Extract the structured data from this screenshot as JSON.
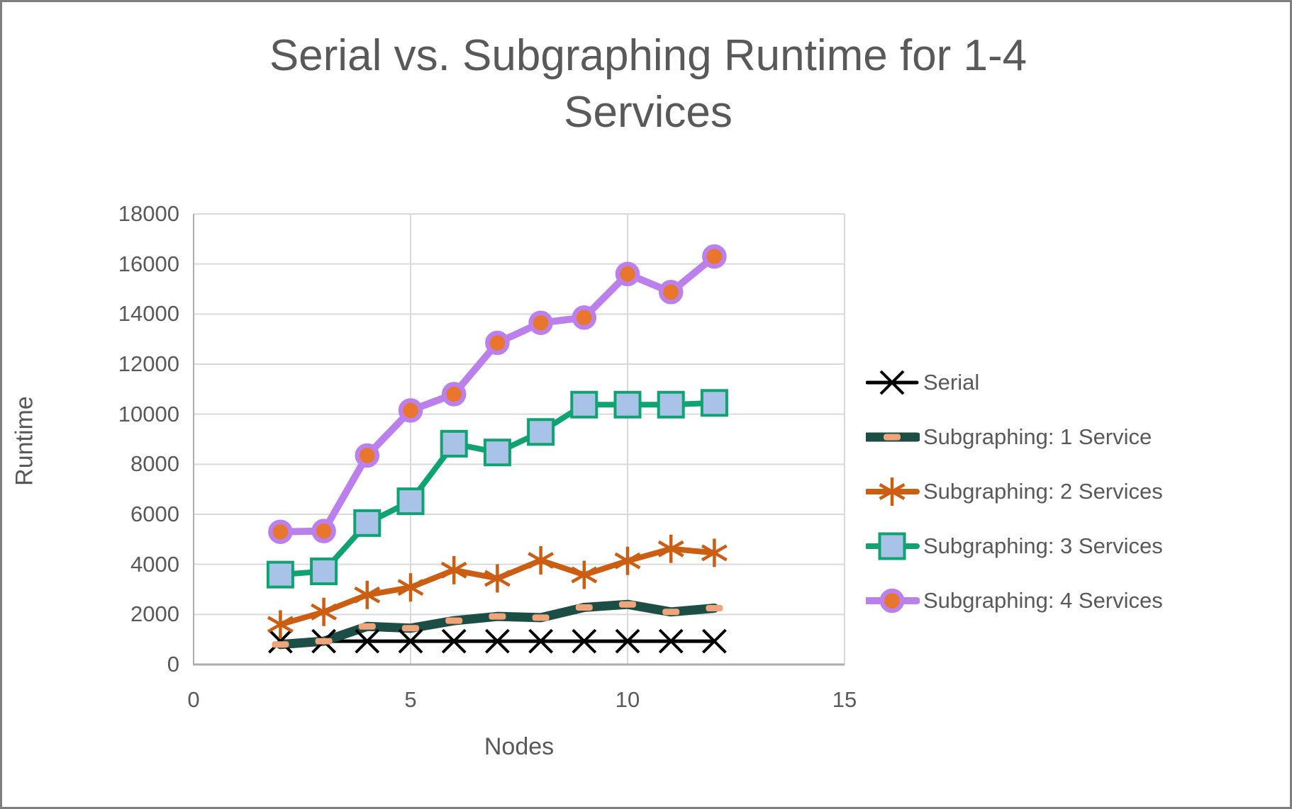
{
  "window": {
    "background": "#ffffff",
    "border_color": "#7f7f7f"
  },
  "chart_data": {
    "type": "line",
    "title": "Serial vs. Subgraphing Runtime for 1-4 Services",
    "xlabel": "Nodes",
    "ylabel": "Runtime",
    "xlim": [
      0,
      15
    ],
    "ylim": [
      0,
      18000
    ],
    "grid": true,
    "legend_position": "right-middle",
    "text_color": "#595959",
    "gridline_color": "#d9d9d9",
    "axis_line_color": "#adadad",
    "x_tick_values": [
      0,
      5,
      10,
      15
    ],
    "x_tick_labels": [
      "0",
      "5",
      "10",
      "15"
    ],
    "y_tick_values": [
      0,
      2000,
      4000,
      6000,
      8000,
      10000,
      12000,
      14000,
      16000,
      18000
    ],
    "y_tick_labels": [
      "0",
      "2000",
      "4000",
      "6000",
      "8000",
      "10000",
      "12000",
      "14000",
      "16000",
      "18000"
    ],
    "x": [
      2,
      3,
      4,
      5,
      6,
      7,
      8,
      9,
      10,
      11,
      12
    ],
    "series": [
      {
        "name": "Serial",
        "color": "#000000",
        "marker": "x",
        "marker_fill": "#000000",
        "line_width": 5,
        "values": [
          930,
          930,
          930,
          930,
          930,
          930,
          930,
          930,
          930,
          930,
          930
        ]
      },
      {
        "name": "Subgraphing: 1 Service",
        "color": "#1d4e46",
        "marker": "dash",
        "marker_fill": "#f0a47c",
        "line_width": 13,
        "values": [
          800,
          930,
          1520,
          1450,
          1750,
          1920,
          1870,
          2280,
          2400,
          2100,
          2250
        ]
      },
      {
        "name": "Subgraphing: 2 Services",
        "color": "#cc5e14",
        "marker": "asterisk",
        "marker_fill": "#cc5e14",
        "line_width": 8,
        "values": [
          1600,
          2100,
          2780,
          3080,
          3770,
          3440,
          4160,
          3580,
          4140,
          4620,
          4460
        ]
      },
      {
        "name": "Subgraphing: 3 Services",
        "color": "#0fa372",
        "marker": "square",
        "marker_fill": "#a9c2e8",
        "line_width": 8,
        "values": [
          3590,
          3720,
          5650,
          6520,
          8820,
          8470,
          9290,
          10380,
          10380,
          10380,
          10450
        ]
      },
      {
        "name": "Subgraphing: 4 Services",
        "color": "#bb80ec",
        "marker": "circle",
        "marker_fill": "#e8762c",
        "line_width": 10,
        "values": [
          5300,
          5330,
          8350,
          10150,
          10800,
          12850,
          13650,
          13860,
          15600,
          14880,
          16300
        ]
      }
    ]
  }
}
